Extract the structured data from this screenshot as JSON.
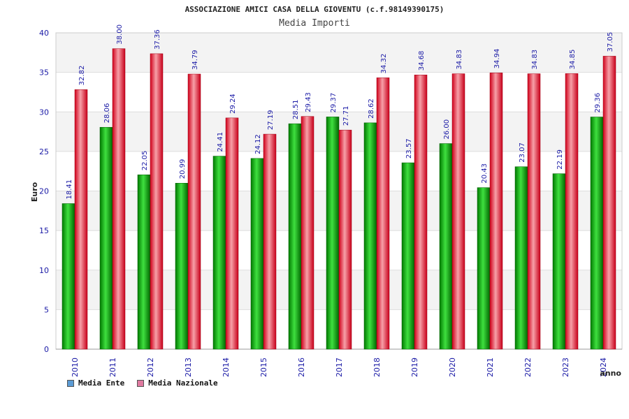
{
  "chart_data": {
    "type": "bar",
    "title": "ASSOCIAZIONE AMICI CASA DELLA GIOVENTU (c.f.98149390175)",
    "subtitle": "Media Importi",
    "xlabel": "anno",
    "ylabel": "Euro",
    "ylim": [
      0,
      40
    ],
    "yticks": [
      0,
      5,
      10,
      15,
      20,
      25,
      30,
      35,
      40
    ],
    "categories": [
      "2010",
      "2011",
      "2012",
      "2013",
      "2014",
      "2015",
      "2016",
      "2017",
      "2018",
      "2019",
      "2020",
      "2021",
      "2022",
      "2023",
      "2024"
    ],
    "series": [
      {
        "name": "Media Ente",
        "color": "#00b000",
        "legend_color": "#5b9bd5",
        "values": [
          18.41,
          28.06,
          22.05,
          20.99,
          24.41,
          24.12,
          28.51,
          29.37,
          28.62,
          23.57,
          26.0,
          20.43,
          23.07,
          22.19,
          29.36
        ],
        "labels": [
          "18.41",
          "28.06",
          "22.05",
          "20.99",
          "24.41",
          "24.12",
          "28.51",
          "29.37",
          "28.62",
          "23.57",
          "26.00",
          "20.43",
          "23.07",
          "22.19",
          "29.36"
        ]
      },
      {
        "name": "Media Nazionale",
        "color": "#e8101e",
        "legend_color": "#e07aa0",
        "values": [
          32.82,
          38.0,
          37.36,
          34.79,
          29.24,
          27.19,
          29.43,
          27.71,
          34.32,
          34.68,
          34.83,
          34.94,
          34.83,
          34.85,
          37.05
        ],
        "labels": [
          "32.82",
          "38.00",
          "37.36",
          "34.79",
          "29.24",
          "27.19",
          "29.43",
          "27.71",
          "34.32",
          "34.68",
          "34.83",
          "34.94",
          "34.83",
          "34.85",
          "37.05"
        ]
      }
    ],
    "grid": true,
    "legend": "bottom-left"
  }
}
